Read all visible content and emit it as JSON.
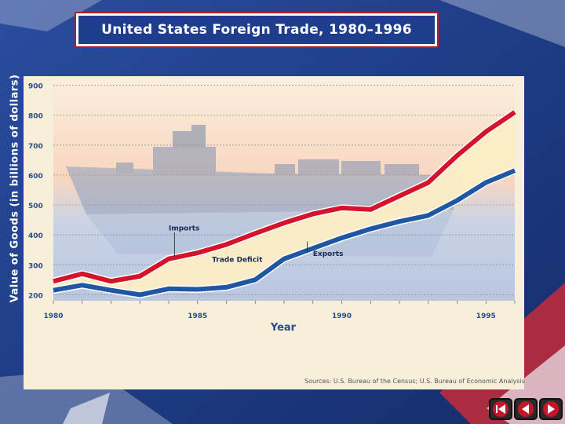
{
  "title": "United States Foreign Trade, 1980–1996",
  "source": "Sources: U.S. Bureau of the Census; U.S. Bureau of Economic Analysis",
  "chart_data": {
    "type": "line",
    "title": "United States Foreign Trade, 1980–1996",
    "xlabel": "Year",
    "ylabel": "Value of Goods (in billions of dollars)",
    "x": [
      1980,
      1981,
      1982,
      1983,
      1984,
      1985,
      1986,
      1987,
      1988,
      1989,
      1990,
      1991,
      1992,
      1993,
      1994,
      1995,
      1996
    ],
    "xlim": [
      1980,
      1996
    ],
    "ylim": [
      180,
      920
    ],
    "x_ticks": [
      1980,
      1985,
      1990,
      1995
    ],
    "y_ticks": [
      200,
      300,
      400,
      500,
      600,
      700,
      800,
      900
    ],
    "series": [
      {
        "name": "Imports",
        "color": "#d4142a",
        "values": [
          245,
          270,
          245,
          262,
          320,
          340,
          368,
          405,
          440,
          470,
          490,
          485,
          530,
          575,
          665,
          745,
          810
        ]
      },
      {
        "name": "Exports",
        "color": "#1f57a4",
        "values": [
          215,
          232,
          215,
          200,
          220,
          218,
          225,
          250,
          320,
          355,
          390,
          420,
          445,
          465,
          515,
          575,
          615
        ]
      }
    ],
    "annotations": [
      {
        "text": "Imports",
        "x": 1984,
        "y": 415
      },
      {
        "text": "Trade Deficit",
        "x": 1985.5,
        "y": 310
      },
      {
        "text": "Exports",
        "x": 1989,
        "y": 330
      }
    ],
    "grid": true
  },
  "colors": {
    "background": "#1f3f8a",
    "banner": "#1e3d8c",
    "imports": "#d4142a",
    "exports": "#1f57a4",
    "deficit": "#fbeec6"
  },
  "nav": {
    "icons": [
      "first-slide-icon",
      "previous-slide-icon",
      "next-slide-icon"
    ]
  }
}
